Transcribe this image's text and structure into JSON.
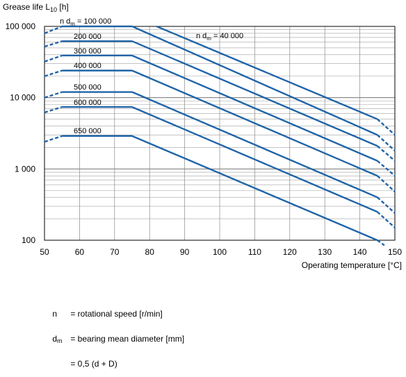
{
  "chart_data": {
    "type": "line",
    "ylabel_main": "Grease life L",
    "ylabel_sub": "10",
    "ylabel_unit": " [h]",
    "xlabel": "Operating temperature [°C]",
    "x_scale": "linear",
    "y_scale": "log",
    "xlim": [
      50,
      150
    ],
    "ylim": [
      100,
      100000
    ],
    "x_ticks": [
      50,
      60,
      70,
      80,
      90,
      100,
      110,
      120,
      130,
      140,
      150
    ],
    "y_ticks": [
      100,
      1000,
      10000,
      100000
    ],
    "y_tick_labels": [
      "100",
      "1 000",
      "10 000",
      "100 000"
    ],
    "grid": true,
    "line_color": "#1f64a8",
    "series": [
      {
        "name": "100 000",
        "label_prefix": "n d",
        "label_sub": "m",
        "label_suffix": " = ",
        "points": [
          [
            50,
            80000
          ],
          [
            55,
            100000
          ],
          [
            75,
            100000
          ],
          [
            145,
            3000
          ],
          [
            150,
            1800
          ]
        ]
      },
      {
        "name": "200 000",
        "points": [
          [
            50,
            52000
          ],
          [
            55,
            62000
          ],
          [
            75,
            62000
          ],
          [
            145,
            2100
          ],
          [
            150,
            1300
          ]
        ]
      },
      {
        "name": "300 000",
        "points": [
          [
            50,
            32000
          ],
          [
            55,
            39000
          ],
          [
            75,
            39000
          ],
          [
            145,
            1300
          ],
          [
            150,
            800
          ]
        ]
      },
      {
        "name": "400 000",
        "points": [
          [
            50,
            20000
          ],
          [
            55,
            24000
          ],
          [
            75,
            24000
          ],
          [
            145,
            800
          ],
          [
            150,
            480
          ]
        ]
      },
      {
        "name": "500 000",
        "points": [
          [
            50,
            10000
          ],
          [
            55,
            12000
          ],
          [
            75,
            12000
          ],
          [
            145,
            400
          ],
          [
            150,
            240
          ]
        ]
      },
      {
        "name": "600 000",
        "points": [
          [
            50,
            6200
          ],
          [
            55,
            7400
          ],
          [
            75,
            7400
          ],
          [
            145,
            250
          ],
          [
            150,
            150
          ]
        ]
      },
      {
        "name": "650 000",
        "points": [
          [
            50,
            2400
          ],
          [
            55,
            2900
          ],
          [
            75,
            2900
          ],
          [
            145,
            100
          ],
          [
            147,
            85
          ]
        ]
      },
      {
        "name": "40 000",
        "label_prefix": "n d",
        "label_sub": "m",
        "label_suffix": " = ",
        "points": [
          [
            82,
            100000
          ],
          [
            145,
            5000
          ],
          [
            150,
            3000
          ]
        ]
      }
    ],
    "legend": [
      {
        "symbol": "n",
        "symbol_sub": "",
        "text": "= rotational speed [r/min]"
      },
      {
        "symbol": "d",
        "symbol_sub": "m",
        "text": "= bearing mean diameter [mm]"
      },
      {
        "symbol": "",
        "symbol_sub": "",
        "text": "= 0,5 (d + D)"
      }
    ]
  }
}
